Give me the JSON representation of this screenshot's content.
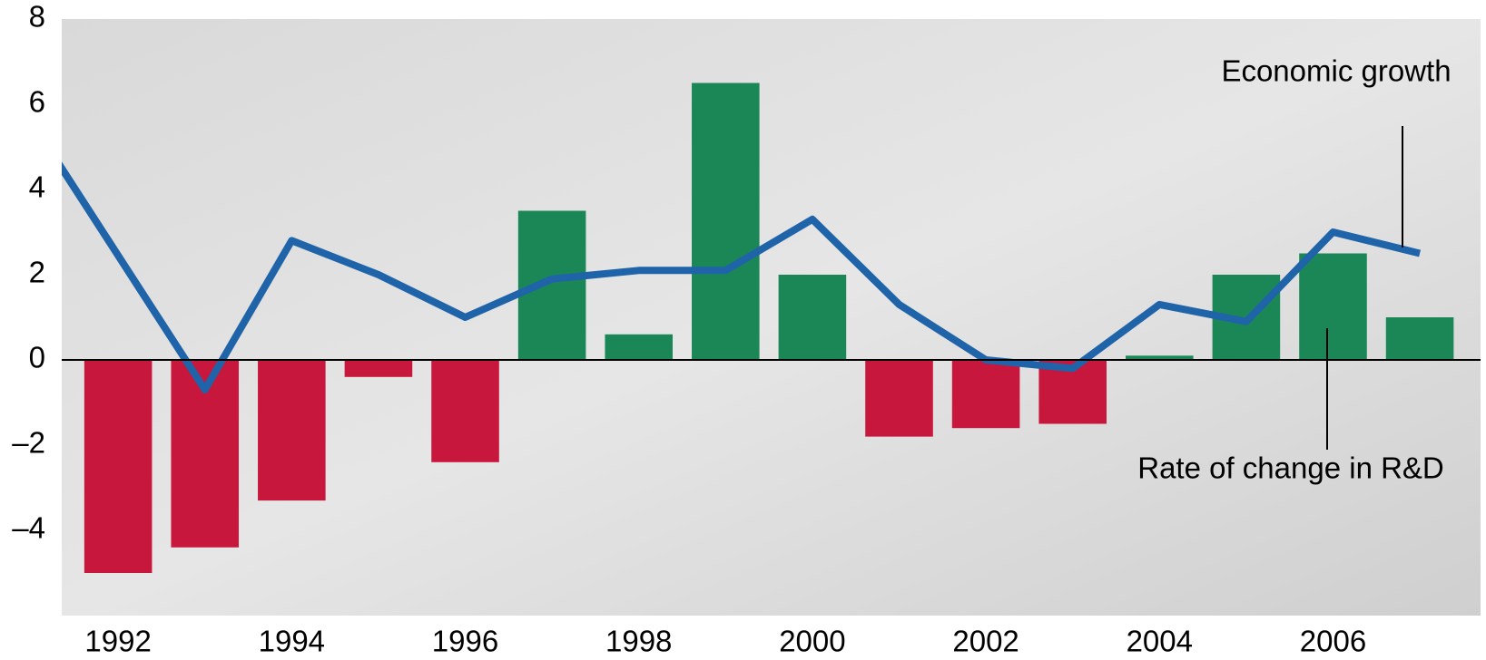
{
  "chart_data": {
    "type": "bar-line",
    "x": [
      1992,
      1993,
      1994,
      1995,
      1996,
      1997,
      1998,
      1999,
      2000,
      2001,
      2002,
      2003,
      2004,
      2005,
      2006,
      2007
    ],
    "series": [
      {
        "name": "Rate of change in R&D",
        "type": "bar",
        "positive_color": "#1b8757",
        "negative_color": "#c8173c",
        "values": [
          -5.0,
          -4.4,
          -3.3,
          -0.4,
          -2.4,
          3.5,
          0.6,
          6.5,
          2.0,
          -1.8,
          -1.6,
          -1.5,
          0.1,
          2.0,
          2.5,
          1.0
        ]
      },
      {
        "name": "Economic growth",
        "type": "line",
        "color": "#1f63a8",
        "x": [
          1991,
          1993,
          1994,
          1995,
          1996,
          1997,
          1998,
          1999,
          2000,
          2001,
          2002,
          2003,
          2004,
          2005,
          2006,
          2007
        ],
        "values": [
          5.6,
          -0.7,
          2.8,
          2.0,
          1.0,
          1.9,
          2.1,
          2.1,
          3.3,
          1.3,
          0.0,
          -0.2,
          1.3,
          0.9,
          3.0,
          2.5
        ]
      }
    ],
    "xlim": [
      1991.35,
      2007.7
    ],
    "xticks": [
      1992,
      1994,
      1996,
      1998,
      2000,
      2002,
      2004,
      2006
    ],
    "ylim": [
      -6,
      8
    ],
    "yticks": [
      {
        "value": -4,
        "label": "–4"
      },
      {
        "value": -2,
        "label": "–2"
      },
      0,
      2,
      4,
      6,
      8
    ]
  }
}
